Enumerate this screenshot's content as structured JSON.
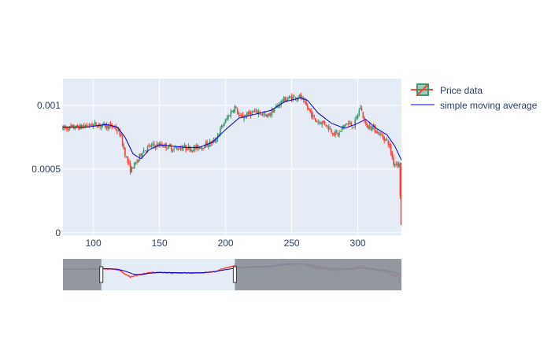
{
  "chart_data": {
    "type": "candlestick",
    "xlim": [
      77,
      333
    ],
    "ylim": [
      -2e-05,
      0.00121
    ],
    "x_ticks": [
      100,
      150,
      200,
      250,
      300
    ],
    "x_tick_labels": [
      "100",
      "150",
      "200",
      "250",
      "300"
    ],
    "y_ticks": [
      0,
      0.0005,
      0.001
    ],
    "y_tick_labels": [
      "0",
      "0.0005",
      "0.001"
    ],
    "grid": true,
    "legend_position": "top-right",
    "legend": [
      {
        "name": "Price data",
        "symbol": "candlestick"
      },
      {
        "name": "simple moving average",
        "symbol": "line"
      }
    ],
    "price_key_points": [
      [
        77,
        0.00082
      ],
      [
        90,
        0.00083
      ],
      [
        100,
        0.00085
      ],
      [
        110,
        0.00084
      ],
      [
        116,
        0.00083
      ],
      [
        120,
        0.00078
      ],
      [
        124,
        0.00062
      ],
      [
        128,
        0.00049
      ],
      [
        133,
        0.00056
      ],
      [
        137,
        0.00064
      ],
      [
        143,
        0.00068
      ],
      [
        152,
        0.00069
      ],
      [
        160,
        0.00066
      ],
      [
        168,
        0.00067
      ],
      [
        176,
        0.00066
      ],
      [
        185,
        0.00069
      ],
      [
        192,
        0.00072
      ],
      [
        197,
        0.00083
      ],
      [
        203,
        0.00093
      ],
      [
        207,
        0.00099
      ],
      [
        211,
        0.0009
      ],
      [
        219,
        0.00094
      ],
      [
        225,
        0.00095
      ],
      [
        231,
        0.00091
      ],
      [
        237,
        0.00097
      ],
      [
        243,
        0.00104
      ],
      [
        249,
        0.00106
      ],
      [
        256,
        0.00107
      ],
      [
        262,
        0.00098
      ],
      [
        268,
        0.00088
      ],
      [
        275,
        0.00086
      ],
      [
        281,
        0.00079
      ],
      [
        285,
        0.00077
      ],
      [
        291,
        0.00086
      ],
      [
        297,
        0.00084
      ],
      [
        302,
        0.00099
      ],
      [
        306,
        0.00084
      ],
      [
        311,
        0.00083
      ],
      [
        317,
        0.00077
      ],
      [
        323,
        0.00071
      ],
      [
        327,
        0.00055
      ],
      [
        331,
        0.00054
      ],
      [
        333,
        6e-05
      ]
    ],
    "sma_key_points": [
      [
        77,
        0.00083
      ],
      [
        95,
        0.00083
      ],
      [
        110,
        0.00085
      ],
      [
        118,
        0.00083
      ],
      [
        124,
        0.00075
      ],
      [
        130,
        0.00062
      ],
      [
        136,
        0.00058
      ],
      [
        142,
        0.00065
      ],
      [
        150,
        0.00069
      ],
      [
        160,
        0.00068
      ],
      [
        170,
        0.00067
      ],
      [
        180,
        0.00067
      ],
      [
        190,
        0.00071
      ],
      [
        200,
        0.00081
      ],
      [
        210,
        0.0009
      ],
      [
        222,
        0.00093
      ],
      [
        234,
        0.00096
      ],
      [
        245,
        0.00103
      ],
      [
        257,
        0.00106
      ],
      [
        262,
        0.00104
      ],
      [
        270,
        0.00094
      ],
      [
        280,
        0.00086
      ],
      [
        290,
        0.00082
      ],
      [
        298,
        0.00085
      ],
      [
        306,
        0.00089
      ],
      [
        314,
        0.00082
      ],
      [
        322,
        0.00077
      ],
      [
        328,
        0.00068
      ],
      [
        333,
        0.00057
      ]
    ]
  },
  "rangeslider": {
    "xlim": [
      77,
      333
    ],
    "selected_range": [
      106,
      207
    ]
  },
  "colors": {
    "increasing": "#3D9970",
    "decreasing": "#FF4136",
    "sma_line": "#0000CC",
    "plot_background": "#E5ECF6",
    "gridline": "#FFFFFF",
    "rangeslider_mask": "#8C8F96",
    "tick_text": "#2a3f5f",
    "rangeslider_price_line": "#FF4136"
  }
}
